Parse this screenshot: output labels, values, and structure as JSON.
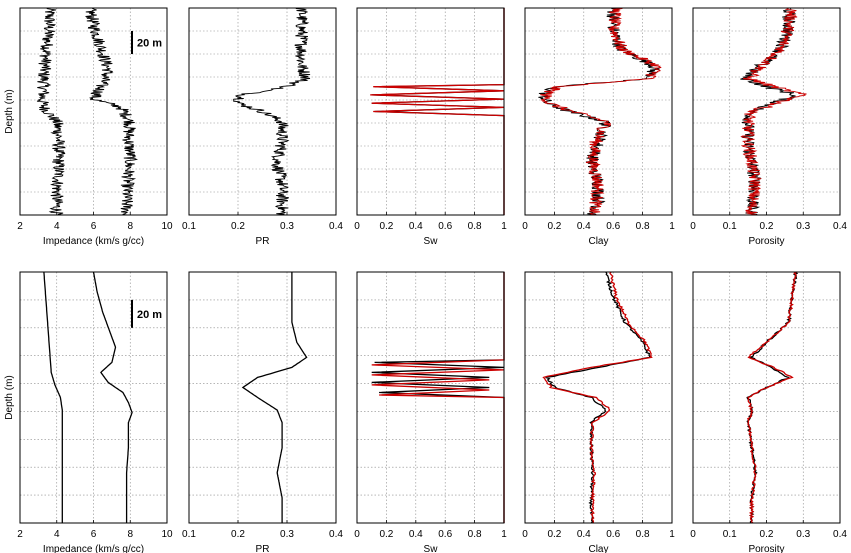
{
  "figure": {
    "rows": [
      {
        "name": "top-row",
        "scale_bar_label": "20 m",
        "ylabel": "Depth (m)"
      },
      {
        "name": "bottom-row",
        "scale_bar_label": "20 m",
        "ylabel": "Depth (m)"
      }
    ]
  },
  "chart_data": [
    {
      "type": "line",
      "row": 0,
      "panel": "impedance",
      "xlabel": "Impedance (km/s g/cc)",
      "xlim": [
        2,
        10
      ],
      "xticks": [
        "2",
        "4",
        "6",
        "8",
        "10"
      ],
      "grid": true,
      "noisy": true,
      "series": [
        {
          "color": "#000000",
          "depth": [
            0,
            8,
            16,
            24,
            32,
            40,
            45,
            48,
            55,
            62,
            72,
            80,
            90,
            100
          ],
          "values": [
            3.6,
            3.6,
            3.5,
            3.4,
            3.3,
            3.3,
            3.2,
            3.3,
            4.0,
            4.1,
            4.1,
            4.1,
            4.0,
            4.0
          ]
        },
        {
          "color": "#000000",
          "depth": [
            0,
            8,
            16,
            24,
            30,
            36,
            40,
            44,
            48,
            55,
            62,
            72,
            80,
            90,
            100
          ],
          "values": [
            5.8,
            6.0,
            6.3,
            6.6,
            6.8,
            6.5,
            6.3,
            6.0,
            7.5,
            8.0,
            7.9,
            8.0,
            7.9,
            7.8,
            7.8
          ]
        }
      ]
    },
    {
      "type": "line",
      "row": 0,
      "panel": "pr",
      "xlabel": "PR",
      "xlim": [
        0.1,
        0.4
      ],
      "xticks": [
        "0.1",
        "0.2",
        "0.3",
        "0.4"
      ],
      "grid": true,
      "noisy": true,
      "series": [
        {
          "color": "#000000",
          "depth": [
            0,
            10,
            20,
            28,
            34,
            38,
            42,
            46,
            50,
            55,
            65,
            75,
            85,
            95,
            100
          ],
          "values": [
            0.33,
            0.33,
            0.33,
            0.33,
            0.34,
            0.3,
            0.21,
            0.2,
            0.25,
            0.29,
            0.29,
            0.28,
            0.29,
            0.29,
            0.29
          ]
        }
      ]
    },
    {
      "type": "line",
      "row": 0,
      "panel": "sw",
      "xlabel": "Sw",
      "xlim": [
        0,
        1
      ],
      "xticks": [
        "0",
        "0.2",
        "0.4",
        "0.6",
        "0.8",
        "1"
      ],
      "grid": true,
      "noisy": false,
      "series": [
        {
          "color": "#000000",
          "depth": [
            0,
            37,
            38,
            40,
            42,
            44,
            46,
            48,
            50,
            52,
            100
          ],
          "values": [
            1,
            1,
            0.12,
            1,
            0.1,
            1,
            0.1,
            1,
            0.12,
            1,
            1
          ]
        },
        {
          "color": "#cc0000",
          "depth": [
            0,
            37,
            38,
            40,
            42,
            44,
            46,
            48,
            50,
            52,
            100
          ],
          "values": [
            1,
            1,
            0.11,
            1,
            0.09,
            1,
            0.1,
            1,
            0.11,
            1,
            1
          ]
        }
      ]
    },
    {
      "type": "line",
      "row": 0,
      "panel": "clay",
      "xlabel": "Clay",
      "xlim": [
        0,
        1
      ],
      "xticks": [
        "0",
        "0.2",
        "0.4",
        "0.6",
        "0.8",
        "1"
      ],
      "grid": true,
      "noisy": true,
      "series": [
        {
          "color": "#000000",
          "depth": [
            0,
            10,
            20,
            28,
            34,
            38,
            42,
            46,
            50,
            55,
            65,
            75,
            85,
            95,
            100
          ],
          "values": [
            0.6,
            0.6,
            0.65,
            0.88,
            0.85,
            0.2,
            0.12,
            0.15,
            0.3,
            0.55,
            0.5,
            0.45,
            0.5,
            0.5,
            0.45
          ]
        },
        {
          "color": "#cc0000",
          "depth": [
            0,
            10,
            20,
            28,
            34,
            38,
            42,
            46,
            50,
            55,
            65,
            75,
            85,
            95,
            100
          ],
          "values": [
            0.62,
            0.6,
            0.66,
            0.9,
            0.86,
            0.22,
            0.14,
            0.16,
            0.32,
            0.56,
            0.48,
            0.46,
            0.5,
            0.48,
            0.46
          ]
        }
      ]
    },
    {
      "type": "line",
      "row": 0,
      "panel": "porosity",
      "xlabel": "Porosity",
      "xlim": [
        0,
        0.4
      ],
      "xticks": [
        "0",
        "0.1",
        "0.2",
        "0.3",
        "0.4"
      ],
      "grid": true,
      "noisy": true,
      "series": [
        {
          "color": "#000000",
          "depth": [
            0,
            10,
            20,
            28,
            34,
            38,
            42,
            46,
            50,
            55,
            65,
            75,
            85,
            95,
            100
          ],
          "values": [
            0.26,
            0.26,
            0.24,
            0.18,
            0.14,
            0.2,
            0.28,
            0.22,
            0.16,
            0.15,
            0.15,
            0.16,
            0.17,
            0.16,
            0.16
          ]
        },
        {
          "color": "#cc0000",
          "depth": [
            0,
            10,
            20,
            28,
            34,
            38,
            42,
            46,
            50,
            55,
            65,
            75,
            85,
            95,
            100
          ],
          "values": [
            0.27,
            0.26,
            0.24,
            0.19,
            0.15,
            0.22,
            0.3,
            0.23,
            0.16,
            0.15,
            0.15,
            0.16,
            0.17,
            0.16,
            0.16
          ]
        }
      ]
    },
    {
      "type": "line",
      "row": 1,
      "panel": "impedance",
      "xlabel": "Impedance (km/s g/cc)",
      "xlim": [
        2,
        10
      ],
      "xticks": [
        "2",
        "4",
        "6",
        "8",
        "10"
      ],
      "grid": true,
      "noisy": false,
      "series": [
        {
          "color": "#000000",
          "depth": [
            0,
            10,
            20,
            30,
            40,
            45,
            50,
            55,
            60,
            70,
            80,
            90,
            100
          ],
          "values": [
            3.3,
            3.4,
            3.5,
            3.6,
            3.7,
            3.9,
            4.2,
            4.3,
            4.3,
            4.3,
            4.3,
            4.3,
            4.3
          ]
        },
        {
          "color": "#000000",
          "depth": [
            0,
            8,
            16,
            24,
            30,
            36,
            40,
            44,
            48,
            52,
            56,
            60,
            70,
            80,
            90,
            100
          ],
          "values": [
            6.0,
            6.2,
            6.5,
            6.9,
            7.2,
            7.0,
            6.4,
            6.8,
            7.6,
            7.9,
            8.1,
            7.9,
            7.9,
            7.8,
            7.8,
            7.8
          ]
        }
      ]
    },
    {
      "type": "line",
      "row": 1,
      "panel": "pr",
      "xlabel": "PR",
      "xlim": [
        0.1,
        0.4
      ],
      "xticks": [
        "0.1",
        "0.2",
        "0.3",
        "0.4"
      ],
      "grid": true,
      "noisy": false,
      "series": [
        {
          "color": "#000000",
          "depth": [
            0,
            10,
            20,
            28,
            34,
            38,
            42,
            46,
            50,
            55,
            60,
            70,
            80,
            90,
            100
          ],
          "values": [
            0.31,
            0.31,
            0.31,
            0.32,
            0.34,
            0.31,
            0.24,
            0.21,
            0.24,
            0.28,
            0.29,
            0.29,
            0.28,
            0.29,
            0.29
          ]
        }
      ]
    },
    {
      "type": "line",
      "row": 1,
      "panel": "sw",
      "xlabel": "Sw",
      "xlim": [
        0,
        1
      ],
      "xticks": [
        "0",
        "0.2",
        "0.4",
        "0.6",
        "0.8",
        "1"
      ],
      "grid": true,
      "noisy": false,
      "series": [
        {
          "color": "#000000",
          "depth": [
            0,
            35,
            36,
            38,
            40,
            42,
            44,
            46,
            48,
            50,
            100
          ],
          "values": [
            1,
            1,
            0.12,
            1,
            0.1,
            0.9,
            0.1,
            0.9,
            0.15,
            1,
            1
          ]
        },
        {
          "color": "#cc0000",
          "depth": [
            0,
            35,
            37,
            39,
            41,
            43,
            45,
            47,
            49,
            50,
            100
          ],
          "values": [
            1,
            1,
            0.1,
            1,
            0.1,
            0.9,
            0.1,
            0.9,
            0.15,
            1,
            1
          ]
        }
      ]
    },
    {
      "type": "line",
      "row": 1,
      "panel": "clay",
      "xlabel": "Clay",
      "xlim": [
        0,
        1
      ],
      "xticks": [
        "0",
        "0.2",
        "0.4",
        "0.6",
        "0.8",
        "1"
      ],
      "grid": true,
      "noisy": false,
      "series": [
        {
          "color": "#000000",
          "depth": [
            0,
            10,
            20,
            28,
            34,
            38,
            42,
            46,
            50,
            55,
            60,
            70,
            80,
            90,
            100
          ],
          "values": [
            0.55,
            0.6,
            0.68,
            0.8,
            0.85,
            0.5,
            0.15,
            0.2,
            0.45,
            0.55,
            0.45,
            0.45,
            0.46,
            0.45,
            0.45
          ]
        },
        {
          "color": "#cc0000",
          "depth": [
            0,
            10,
            20,
            28,
            34,
            38,
            42,
            46,
            50,
            55,
            60,
            70,
            80,
            90,
            100
          ],
          "values": [
            0.58,
            0.62,
            0.7,
            0.82,
            0.86,
            0.45,
            0.12,
            0.18,
            0.48,
            0.58,
            0.46,
            0.45,
            0.47,
            0.46,
            0.46
          ]
        }
      ]
    },
    {
      "type": "line",
      "row": 1,
      "panel": "porosity",
      "xlabel": "Porosity",
      "xlim": [
        0,
        0.4
      ],
      "xticks": [
        "0",
        "0.1",
        "0.2",
        "0.3",
        "0.4"
      ],
      "grid": true,
      "noisy": false,
      "series": [
        {
          "color": "#000000",
          "depth": [
            0,
            10,
            20,
            28,
            34,
            38,
            42,
            46,
            50,
            55,
            60,
            70,
            80,
            90,
            100
          ],
          "values": [
            0.28,
            0.27,
            0.26,
            0.2,
            0.16,
            0.21,
            0.26,
            0.2,
            0.15,
            0.16,
            0.15,
            0.16,
            0.17,
            0.16,
            0.16
          ]
        },
        {
          "color": "#cc0000",
          "depth": [
            0,
            10,
            20,
            28,
            34,
            38,
            42,
            46,
            50,
            55,
            60,
            70,
            80,
            90,
            100
          ],
          "values": [
            0.28,
            0.27,
            0.26,
            0.2,
            0.15,
            0.22,
            0.27,
            0.2,
            0.15,
            0.16,
            0.15,
            0.16,
            0.17,
            0.16,
            0.16
          ]
        }
      ]
    }
  ]
}
